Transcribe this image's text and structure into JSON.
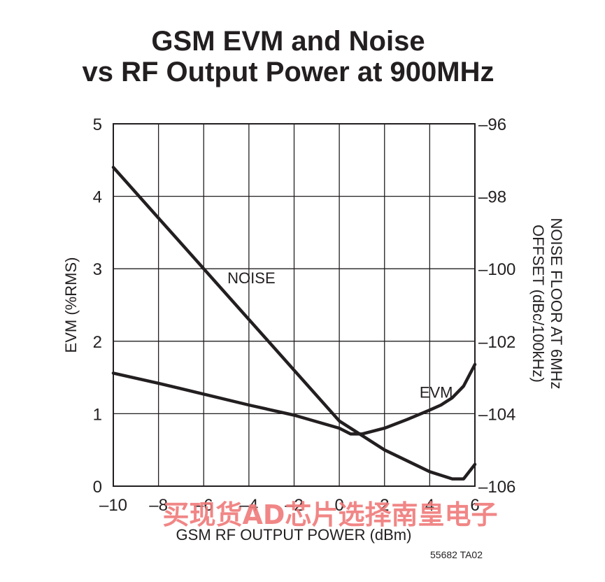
{
  "chart_data": {
    "type": "line",
    "title_line1": "GSM EVM and Noise",
    "title_line2": "vs RF Output Power at 900MHz",
    "xlabel": "GSM RF OUTPUT POWER (dBm)",
    "ylabel_left": "EVM (%RMS)",
    "ylabel_right_line1": "NOISE FLOOR AT 6MHz",
    "ylabel_right_line2": "OFFSET (dBc/100kHz)",
    "xlim": [
      -10,
      6
    ],
    "ylim_left": [
      0,
      5
    ],
    "ylim_right": [
      -106,
      -96
    ],
    "x_ticks": [
      "-10",
      "-8",
      "-6",
      "-4",
      "-2",
      "0",
      "2",
      "4",
      "6"
    ],
    "y_left_ticks": [
      "0",
      "1",
      "2",
      "3",
      "4",
      "5"
    ],
    "y_right_ticks": [
      "-96",
      "-98",
      "-100",
      "-102",
      "-104",
      "-106"
    ],
    "grid": true,
    "series": [
      {
        "name": "NOISE",
        "axis": "right",
        "x": [
          -10,
          -8,
          -6,
          -4,
          -2,
          0,
          2,
          4,
          5,
          5.5,
          6
        ],
        "y": [
          -97.2,
          -98.6,
          -100.0,
          -101.4,
          -102.8,
          -104.2,
          -105.0,
          -105.6,
          -105.8,
          -105.8,
          -105.4
        ]
      },
      {
        "name": "EVM",
        "axis": "left",
        "x": [
          -10,
          -8,
          -6,
          -4,
          -2,
          0,
          0.5,
          1,
          2,
          3,
          4,
          4.5,
          5,
          5.5,
          6
        ],
        "y": [
          1.56,
          1.42,
          1.27,
          1.12,
          0.98,
          0.8,
          0.72,
          0.72,
          0.8,
          0.92,
          1.05,
          1.12,
          1.22,
          1.38,
          1.68
        ]
      }
    ],
    "annotations": [
      {
        "text": "NOISE",
        "x": -4.95,
        "y_left": 2.8
      },
      {
        "text": "EVM",
        "x": 3.55,
        "y_left": 1.22
      }
    ]
  },
  "figure_code": "55682 TA02",
  "watermark": "买现货AD芯片选择南皇电子",
  "colors": {
    "ink": "#231f20",
    "watermark": "#f07a7a"
  }
}
